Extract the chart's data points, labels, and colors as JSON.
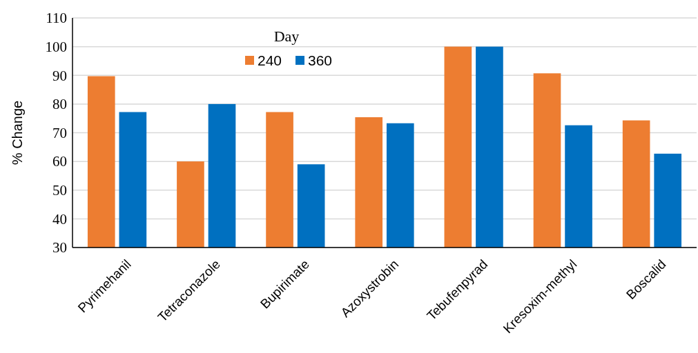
{
  "chart_data": {
    "type": "bar",
    "ylabel": "% Change",
    "legend_title": "Day",
    "legend": "top",
    "categories": [
      "Pyrimehanil",
      "Tetraconazole",
      "Bupirimate",
      "Azoxystrobin",
      "Tebufenpyrad",
      "Kresoxim-methyl",
      "Boscalid"
    ],
    "series": [
      {
        "name": "240",
        "color": "#ed7d31",
        "values": [
          89.7,
          60,
          77.2,
          75.4,
          100,
          90.7,
          74.3
        ]
      },
      {
        "name": "360",
        "color": "#0070c0",
        "values": [
          77.2,
          80,
          59,
          73.3,
          100,
          72.6,
          62.7
        ]
      }
    ],
    "ylim": [
      30,
      110
    ],
    "yticks": [
      30,
      40,
      50,
      60,
      70,
      80,
      90,
      100,
      110
    ],
    "grid": "y"
  }
}
